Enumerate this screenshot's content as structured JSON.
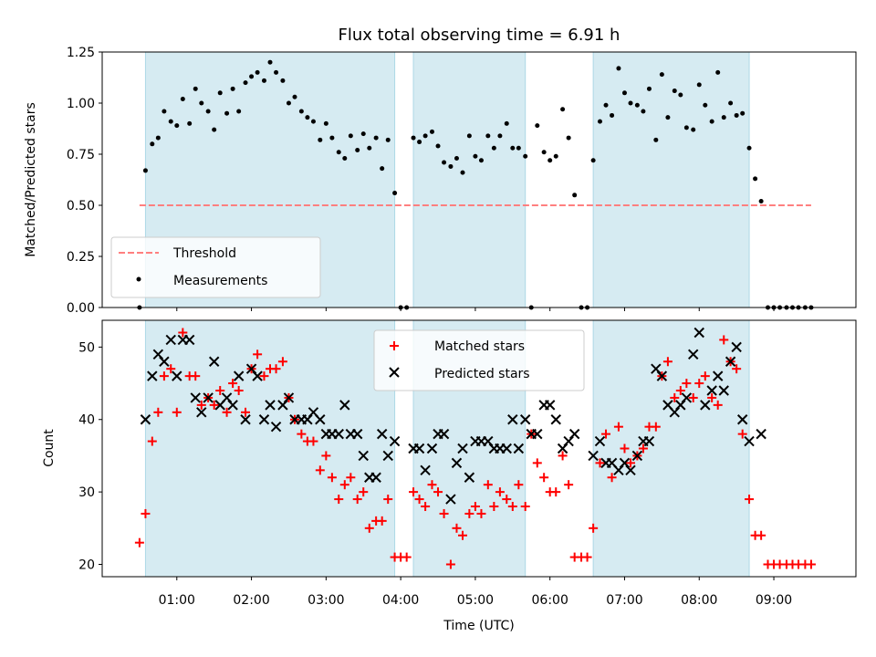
{
  "chart_data": [
    {
      "type": "scatter",
      "title": "Flux total observing time = 6.91 h",
      "ylabel": "Matched/Predicted stars",
      "xlabel": "",
      "xlim": [
        0.0,
        10.1
      ],
      "ylim": [
        0.0,
        1.25
      ],
      "y_ticks": [
        "0.00",
        "0.25",
        "0.50",
        "0.75",
        "1.00",
        "1.25"
      ],
      "shaded_intervals": [
        [
          0.58,
          3.92
        ],
        [
          4.17,
          5.67
        ],
        [
          6.58,
          8.67
        ]
      ],
      "shade_color": "#add8e6",
      "legend_position": "lower-left",
      "series": [
        {
          "name": "Threshold",
          "marker": "dashed-line",
          "color": "#ff7f7f",
          "x": [
            0.5,
            9.5
          ],
          "y": [
            0.5,
            0.5
          ]
        },
        {
          "name": "Measurements",
          "marker": "dot",
          "color": "#000000",
          "x": [
            0.5,
            0.58,
            0.67,
            0.75,
            0.83,
            0.92,
            1.0,
            1.08,
            1.17,
            1.25,
            1.33,
            1.42,
            1.5,
            1.58,
            1.67,
            1.75,
            1.83,
            1.92,
            2.0,
            2.08,
            2.17,
            2.25,
            2.33,
            2.42,
            2.5,
            2.58,
            2.67,
            2.75,
            2.83,
            2.92,
            3.0,
            3.08,
            3.17,
            3.25,
            3.33,
            3.42,
            3.5,
            3.58,
            3.67,
            3.75,
            3.83,
            3.92,
            4.0,
            4.08,
            4.17,
            4.25,
            4.33,
            4.42,
            4.5,
            4.58,
            4.67,
            4.75,
            4.83,
            4.92,
            5.0,
            5.08,
            5.17,
            5.25,
            5.33,
            5.42,
            5.5,
            5.58,
            5.67,
            5.75,
            5.83,
            5.92,
            6.0,
            6.08,
            6.17,
            6.25,
            6.33,
            6.42,
            6.5,
            6.58,
            6.67,
            6.75,
            6.83,
            6.92,
            7.0,
            7.08,
            7.17,
            7.25,
            7.33,
            7.42,
            7.5,
            7.58,
            7.67,
            7.75,
            7.83,
            7.92,
            8.0,
            8.08,
            8.17,
            8.25,
            8.33,
            8.42,
            8.5,
            8.58,
            8.67,
            8.75,
            8.83,
            8.92,
            9.0,
            9.08,
            9.17,
            9.25,
            9.33,
            9.42,
            9.5
          ],
          "y": [
            0.0,
            0.67,
            0.8,
            0.83,
            0.96,
            0.91,
            0.89,
            1.02,
            0.9,
            1.07,
            1.0,
            0.96,
            0.87,
            1.05,
            0.95,
            1.07,
            0.96,
            1.1,
            1.13,
            1.15,
            1.11,
            1.2,
            1.15,
            1.11,
            1.0,
            1.03,
            0.96,
            0.93,
            0.91,
            0.82,
            0.9,
            0.83,
            0.76,
            0.73,
            0.84,
            0.77,
            0.85,
            0.78,
            0.83,
            0.68,
            0.82,
            0.56,
            0.0,
            0.0,
            0.83,
            0.81,
            0.84,
            0.86,
            0.79,
            0.71,
            0.69,
            0.73,
            0.66,
            0.84,
            0.74,
            0.72,
            0.84,
            0.78,
            0.84,
            0.9,
            0.78,
            0.78,
            0.74,
            0.0,
            0.89,
            0.76,
            0.72,
            0.74,
            0.97,
            0.83,
            0.55,
            0.0,
            0.0,
            0.72,
            0.91,
            0.99,
            0.94,
            1.17,
            1.05,
            1.0,
            0.99,
            0.96,
            1.07,
            0.82,
            1.14,
            0.93,
            1.06,
            1.04,
            0.88,
            0.87,
            1.09,
            0.99,
            0.91,
            1.15,
            0.93,
            1.0,
            0.94,
            0.95,
            0.78,
            0.63,
            0.52,
            0.0,
            0.0,
            0.0,
            0.0,
            0.0,
            0.0,
            0.0,
            0.0
          ]
        }
      ]
    },
    {
      "type": "scatter",
      "title": "",
      "ylabel": "Count",
      "xlabel": "Time (UTC)",
      "xlim": [
        0.0,
        10.1
      ],
      "ylim": [
        18.3,
        53.7
      ],
      "x_ticks": [
        1,
        2,
        3,
        4,
        5,
        6,
        7,
        8,
        9
      ],
      "x_tick_labels": [
        "01:00",
        "02:00",
        "03:00",
        "04:00",
        "05:00",
        "06:00",
        "07:00",
        "08:00",
        "09:00"
      ],
      "y_ticks": [
        20,
        30,
        40,
        50
      ],
      "shaded_intervals": [
        [
          0.58,
          3.92
        ],
        [
          4.17,
          5.67
        ],
        [
          6.58,
          8.67
        ]
      ],
      "shade_color": "#add8e6",
      "legend_position": "top-center",
      "series": [
        {
          "name": "Matched stars",
          "marker": "plus",
          "color": "#ff0000",
          "x": [
            0.5,
            0.58,
            0.67,
            0.75,
            0.83,
            0.92,
            1.0,
            1.08,
            1.17,
            1.25,
            1.33,
            1.42,
            1.5,
            1.58,
            1.67,
            1.75,
            1.83,
            1.92,
            2.0,
            2.08,
            2.17,
            2.25,
            2.33,
            2.42,
            2.5,
            2.58,
            2.67,
            2.75,
            2.83,
            2.92,
            3.0,
            3.08,
            3.17,
            3.25,
            3.33,
            3.42,
            3.5,
            3.58,
            3.67,
            3.75,
            3.83,
            3.92,
            4.0,
            4.08,
            4.17,
            4.25,
            4.33,
            4.42,
            4.5,
            4.58,
            4.67,
            4.75,
            4.83,
            4.92,
            5.0,
            5.08,
            5.17,
            5.25,
            5.33,
            5.42,
            5.5,
            5.58,
            5.67,
            5.75,
            5.83,
            5.92,
            6.0,
            6.08,
            6.17,
            6.25,
            6.33,
            6.42,
            6.5,
            6.58,
            6.67,
            6.75,
            6.83,
            6.92,
            7.0,
            7.08,
            7.17,
            7.25,
            7.33,
            7.42,
            7.5,
            7.58,
            7.67,
            7.75,
            7.83,
            7.92,
            8.0,
            8.08,
            8.17,
            8.25,
            8.33,
            8.42,
            8.5,
            8.58,
            8.67,
            8.75,
            8.83,
            8.92,
            9.0,
            9.08,
            9.17,
            9.25,
            9.33,
            9.42,
            9.5
          ],
          "y": [
            23,
            27,
            37,
            41,
            46,
            47,
            41,
            52,
            46,
            46,
            42,
            43,
            42,
            44,
            41,
            45,
            44,
            41,
            47,
            49,
            46,
            47,
            47,
            48,
            43,
            40,
            38,
            37,
            37,
            33,
            35,
            32,
            29,
            31,
            32,
            29,
            30,
            25,
            26,
            26,
            29,
            21,
            21,
            21,
            30,
            29,
            28,
            31,
            30,
            27,
            20,
            25,
            24,
            27,
            28,
            27,
            31,
            28,
            30,
            29,
            28,
            31,
            28,
            38,
            34,
            32,
            30,
            30,
            35,
            31,
            21,
            21,
            21,
            25,
            34,
            38,
            32,
            39,
            36,
            34,
            35,
            36,
            39,
            39,
            46,
            48,
            43,
            44,
            45,
            43,
            45,
            46,
            43,
            42,
            51,
            48,
            47,
            38,
            29,
            24,
            24,
            20,
            20,
            20,
            20,
            20,
            20,
            20,
            20
          ]
        },
        {
          "name": "Predicted stars",
          "marker": "cross",
          "color": "#000000",
          "x": [
            0.58,
            0.67,
            0.75,
            0.83,
            0.92,
            1.0,
            1.08,
            1.17,
            1.25,
            1.33,
            1.42,
            1.5,
            1.58,
            1.67,
            1.75,
            1.83,
            1.92,
            2.0,
            2.08,
            2.17,
            2.25,
            2.33,
            2.42,
            2.5,
            2.58,
            2.67,
            2.75,
            2.83,
            2.92,
            3.0,
            3.08,
            3.17,
            3.25,
            3.33,
            3.42,
            3.5,
            3.58,
            3.67,
            3.75,
            3.83,
            3.92,
            4.17,
            4.25,
            4.33,
            4.42,
            4.5,
            4.58,
            4.67,
            4.75,
            4.83,
            4.92,
            5.0,
            5.08,
            5.17,
            5.25,
            5.33,
            5.42,
            5.5,
            5.58,
            5.67,
            5.75,
            5.83,
            5.92,
            6.0,
            6.08,
            6.17,
            6.25,
            6.33,
            6.58,
            6.67,
            6.75,
            6.83,
            6.92,
            7.0,
            7.08,
            7.17,
            7.25,
            7.33,
            7.42,
            7.5,
            7.58,
            7.67,
            7.75,
            7.83,
            7.92,
            8.0,
            8.08,
            8.17,
            8.25,
            8.33,
            8.42,
            8.5,
            8.58,
            8.67,
            8.83
          ],
          "y": [
            40,
            46,
            49,
            48,
            51,
            46,
            51,
            51,
            43,
            41,
            43,
            48,
            42,
            43,
            42,
            46,
            40,
            47,
            46,
            40,
            42,
            39,
            42,
            43,
            40,
            40,
            40,
            41,
            40,
            38,
            38,
            38,
            42,
            38,
            38,
            35,
            32,
            32,
            38,
            35,
            37,
            36,
            36,
            33,
            36,
            38,
            38,
            29,
            34,
            36,
            32,
            37,
            37,
            37,
            36,
            36,
            36,
            40,
            36,
            40,
            38,
            38,
            42,
            42,
            40,
            36,
            37,
            38,
            35,
            37,
            34,
            34,
            33,
            34,
            33,
            35,
            37,
            37,
            47,
            46,
            42,
            41,
            42,
            43,
            49,
            52,
            42,
            44,
            46,
            44,
            48,
            50,
            40,
            37,
            38
          ]
        }
      ]
    }
  ]
}
